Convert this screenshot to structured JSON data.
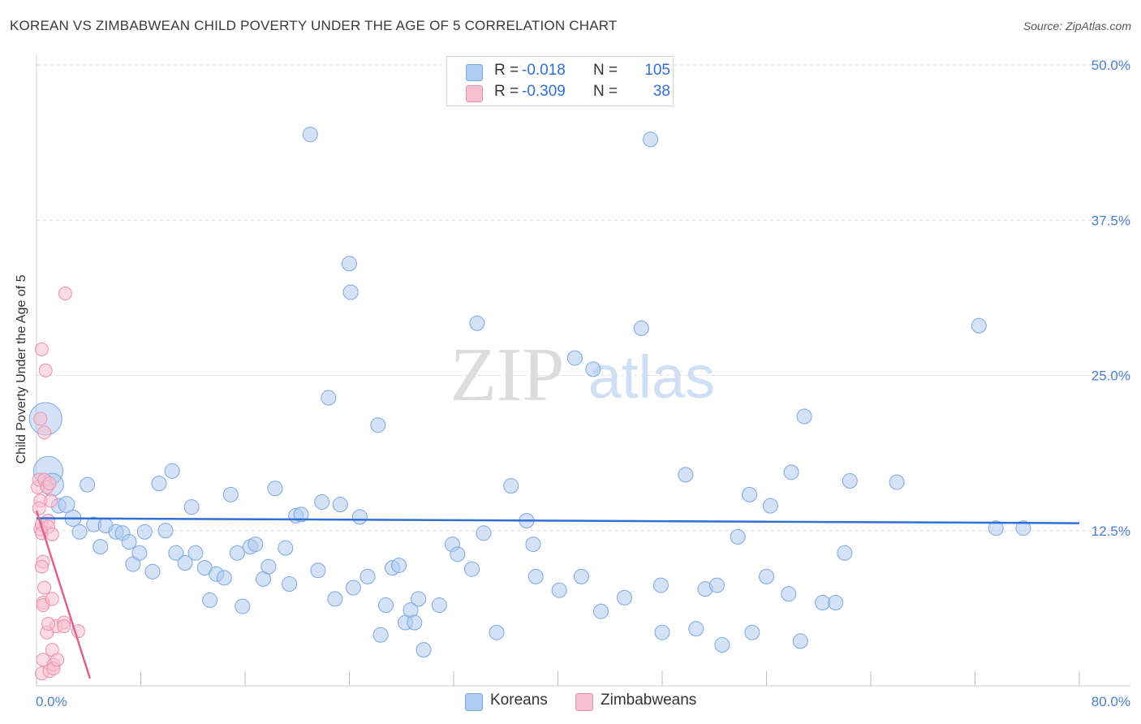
{
  "title": "KOREAN VS ZIMBABWEAN CHILD POVERTY UNDER THE AGE OF 5 CORRELATION CHART",
  "source": "Source: ZipAtlas.com",
  "watermark": {
    "zip": "ZIP",
    "atlas": "atlas"
  },
  "legend": {
    "rows": [
      {
        "r_label": "R =",
        "r_value": "-0.018",
        "n_label": "N =",
        "n_value": "105",
        "color": "#aecbf0",
        "border": "#7aa7e0"
      },
      {
        "r_label": "R =",
        "r_value": "-0.309",
        "n_label": "N =",
        "n_value": "38",
        "color": "#f7bfd0",
        "border": "#eb8fad"
      }
    ]
  },
  "bottom_legend": {
    "koreans": "Koreans",
    "zimbabweans": "Zimbabweans"
  },
  "colors": {
    "korean_fill": "#aecbf0",
    "korean_stroke": "#7aa7e0",
    "korean_line": "#2f6fd6",
    "zim_fill": "#f7bfd0",
    "zim_stroke": "#eb8fad",
    "zim_line": "#e0628e",
    "tick_text": "#4a7fd4",
    "grid": "#dddddd"
  },
  "chart_data": {
    "type": "scatter",
    "title": "KOREAN VS ZIMBABWEAN CHILD POVERTY UNDER THE AGE OF 5 CORRELATION CHART",
    "xlabel": "",
    "ylabel": "Child Poverty Under the Age of 5",
    "xlim": [
      0,
      80
    ],
    "ylim": [
      0,
      50
    ],
    "x_tick_labels": [
      "0.0%",
      "80.0%"
    ],
    "y_ticks": [
      12.5,
      25.0,
      37.5,
      50.0
    ],
    "y_tick_labels": [
      "12.5%",
      "25.0%",
      "37.5%",
      "50.0%"
    ],
    "grid": "horizontal dashed",
    "legend_position": "top-center",
    "series": [
      {
        "name": "Koreans",
        "R": -0.018,
        "N": 105,
        "trend": {
          "x": [
            0,
            80
          ],
          "y": [
            13.5,
            13.1
          ]
        },
        "points": [
          [
            0.7,
            21.5,
            20
          ],
          [
            0.9,
            17.3,
            18
          ],
          [
            1.2,
            16.2,
            14
          ],
          [
            1.7,
            14.5,
            9
          ],
          [
            2.3,
            14.6,
            10
          ],
          [
            2.8,
            13.5,
            10
          ],
          [
            3.3,
            12.4,
            9
          ],
          [
            3.9,
            16.2,
            9
          ],
          [
            4.4,
            13.0,
            9
          ],
          [
            4.9,
            11.2,
            9
          ],
          [
            5.3,
            12.9,
            9
          ],
          [
            6.1,
            12.4,
            9
          ],
          [
            6.6,
            12.3,
            9
          ],
          [
            7.1,
            11.6,
            9
          ],
          [
            7.4,
            9.8,
            9
          ],
          [
            7.9,
            10.7,
            9
          ],
          [
            8.3,
            12.4,
            9
          ],
          [
            8.9,
            9.2,
            9
          ],
          [
            9.4,
            16.3,
            9
          ],
          [
            9.9,
            12.5,
            9
          ],
          [
            10.4,
            17.3,
            9
          ],
          [
            10.7,
            10.7,
            9
          ],
          [
            11.4,
            9.9,
            9
          ],
          [
            11.9,
            14.4,
            9
          ],
          [
            12.2,
            10.7,
            9
          ],
          [
            12.9,
            9.5,
            9
          ],
          [
            13.3,
            6.9,
            9
          ],
          [
            13.8,
            9.0,
            9
          ],
          [
            14.4,
            8.7,
            9
          ],
          [
            14.9,
            15.4,
            9
          ],
          [
            15.4,
            10.7,
            9
          ],
          [
            15.8,
            6.4,
            9
          ],
          [
            16.4,
            11.2,
            9
          ],
          [
            16.8,
            11.4,
            9
          ],
          [
            17.4,
            8.6,
            9
          ],
          [
            17.8,
            9.6,
            9
          ],
          [
            18.3,
            15.9,
            9
          ],
          [
            19.1,
            11.1,
            9
          ],
          [
            19.4,
            8.2,
            9
          ],
          [
            19.9,
            13.7,
            9
          ],
          [
            20.3,
            13.8,
            9
          ],
          [
            21.0,
            44.4,
            9
          ],
          [
            21.6,
            9.3,
            9
          ],
          [
            21.9,
            14.8,
            9
          ],
          [
            22.4,
            23.2,
            9
          ],
          [
            22.9,
            7.0,
            9
          ],
          [
            23.3,
            14.6,
            9
          ],
          [
            24.0,
            34.0,
            9
          ],
          [
            24.3,
            7.9,
            9
          ],
          [
            24.1,
            31.7,
            9
          ],
          [
            24.8,
            13.6,
            9
          ],
          [
            25.4,
            8.8,
            9
          ],
          [
            26.2,
            21.0,
            9
          ],
          [
            26.4,
            4.1,
            9
          ],
          [
            26.8,
            6.5,
            9
          ],
          [
            27.3,
            9.5,
            9
          ],
          [
            27.8,
            9.7,
            9
          ],
          [
            28.3,
            5.1,
            9
          ],
          [
            28.7,
            6.1,
            9
          ],
          [
            29.0,
            5.1,
            9
          ],
          [
            29.3,
            7.0,
            9
          ],
          [
            29.7,
            2.9,
            9
          ],
          [
            30.9,
            6.5,
            9
          ],
          [
            31.9,
            11.4,
            9
          ],
          [
            32.3,
            10.6,
            9
          ],
          [
            33.8,
            29.2,
            9
          ],
          [
            33.4,
            9.4,
            9
          ],
          [
            34.3,
            12.3,
            9
          ],
          [
            35.3,
            4.3,
            9
          ],
          [
            36.4,
            16.1,
            9
          ],
          [
            37.6,
            13.3,
            9
          ],
          [
            38.1,
            11.4,
            9
          ],
          [
            38.3,
            8.8,
            9
          ],
          [
            40.1,
            7.7,
            9
          ],
          [
            41.3,
            26.4,
            9
          ],
          [
            41.8,
            8.8,
            9
          ],
          [
            42.7,
            25.5,
            9
          ],
          [
            43.3,
            6.0,
            9
          ],
          [
            45.1,
            7.1,
            9
          ],
          [
            46.4,
            28.8,
            9
          ],
          [
            47.1,
            44.0,
            9
          ],
          [
            47.9,
            8.1,
            9
          ],
          [
            48.0,
            4.3,
            9
          ],
          [
            49.8,
            17.0,
            9
          ],
          [
            50.6,
            4.6,
            9
          ],
          [
            51.3,
            7.8,
            9
          ],
          [
            52.2,
            8.1,
            9
          ],
          [
            52.6,
            3.3,
            9
          ],
          [
            53.8,
            12.0,
            9
          ],
          [
            54.7,
            15.4,
            9
          ],
          [
            54.9,
            4.3,
            9
          ],
          [
            56.0,
            8.8,
            9
          ],
          [
            56.3,
            14.5,
            9
          ],
          [
            57.7,
            7.4,
            9
          ],
          [
            57.9,
            17.2,
            9
          ],
          [
            58.6,
            3.6,
            9
          ],
          [
            58.9,
            21.7,
            9
          ],
          [
            60.3,
            6.7,
            9
          ],
          [
            61.3,
            6.7,
            9
          ],
          [
            62.4,
            16.5,
            9
          ],
          [
            62.0,
            10.7,
            9
          ],
          [
            66.0,
            16.4,
            9
          ],
          [
            72.3,
            29.0,
            9
          ],
          [
            73.6,
            12.7,
            9
          ],
          [
            75.7,
            12.7,
            9
          ]
        ]
      },
      {
        "name": "Zimbabweans",
        "R": -0.309,
        "N": 38,
        "trend": {
          "x": [
            0,
            4.1
          ],
          "y": [
            14.1,
            0.6
          ]
        },
        "points": [
          [
            0.1,
            16.0
          ],
          [
            0.2,
            16.6
          ],
          [
            0.3,
            14.9
          ],
          [
            0.2,
            14.3
          ],
          [
            0.3,
            12.6
          ],
          [
            0.4,
            13.0
          ],
          [
            0.4,
            12.3
          ],
          [
            0.3,
            21.5
          ],
          [
            0.4,
            27.1
          ],
          [
            0.6,
            20.4
          ],
          [
            0.5,
            10.0
          ],
          [
            0.6,
            7.9
          ],
          [
            0.4,
            9.6
          ],
          [
            0.5,
            6.7
          ],
          [
            0.5,
            6.5
          ],
          [
            0.5,
            2.1
          ],
          [
            0.4,
            1.0
          ],
          [
            0.6,
            16.6
          ],
          [
            0.7,
            25.4
          ],
          [
            0.8,
            16.0
          ],
          [
            0.9,
            13.3
          ],
          [
            0.9,
            12.8
          ],
          [
            1.0,
            16.3
          ],
          [
            1.1,
            14.9
          ],
          [
            1.2,
            12.2
          ],
          [
            1.5,
            4.8
          ],
          [
            0.8,
            4.3
          ],
          [
            0.9,
            5.0
          ],
          [
            1.0,
            1.2
          ],
          [
            1.2,
            2.9
          ],
          [
            1.3,
            1.7
          ],
          [
            1.3,
            1.4
          ],
          [
            1.6,
            2.1
          ],
          [
            2.1,
            5.1
          ],
          [
            2.1,
            4.8
          ],
          [
            2.2,
            31.6
          ],
          [
            3.2,
            4.4
          ],
          [
            1.2,
            7.0
          ]
        ]
      }
    ]
  }
}
